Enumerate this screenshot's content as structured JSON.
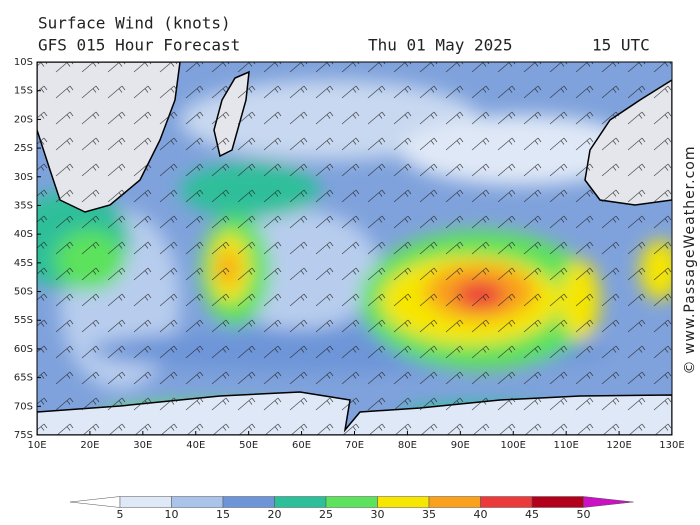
{
  "header": {
    "title": "Surface Wind (knots)",
    "subtitle": "GFS 015 Hour Forecast",
    "date": "Thu 01 May 2025",
    "time": "15 UTC"
  },
  "map": {
    "lat_labels": [
      "10S",
      "15S",
      "20S",
      "25S",
      "30S",
      "35S",
      "40S",
      "45S",
      "50S",
      "55S",
      "60S",
      "65S",
      "70S",
      "75S"
    ],
    "lon_labels": [
      "10E",
      "20E",
      "30E",
      "40E",
      "50E",
      "60E",
      "70E",
      "80E",
      "90E",
      "100E",
      "110E",
      "120E",
      "130E"
    ]
  },
  "legend": {
    "ticks": [
      5,
      10,
      15,
      20,
      25,
      30,
      35,
      40,
      45,
      50
    ],
    "colors": [
      "#ffffff",
      "#dfe8f6",
      "#a9c3ea",
      "#6d95d8",
      "#2dbf9a",
      "#5ce25c",
      "#f6e600",
      "#f9a01c",
      "#ec3a3a",
      "#b3001b",
      "#cc10c4"
    ]
  },
  "credit": "© www.PassageWeather.com"
}
